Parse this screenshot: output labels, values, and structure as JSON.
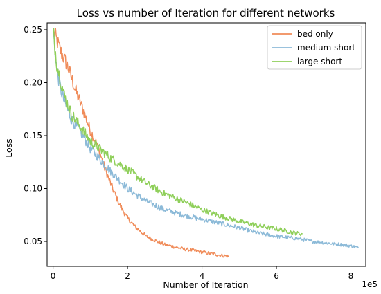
{
  "chart_data": {
    "type": "line",
    "title": "Loss vs number of Iteration for different networks",
    "xlabel": "Number of Iteration",
    "ylabel": "Loss",
    "x_offset_label": "1e5",
    "xlim": [
      -0.16,
      8.4
    ],
    "ylim": [
      0.0265,
      0.2565
    ],
    "x_ticks": [
      0,
      2,
      4,
      6,
      8
    ],
    "x_tick_labels": [
      "0",
      "2",
      "4",
      "6",
      "8"
    ],
    "y_ticks": [
      0.05,
      0.1,
      0.15,
      0.2,
      0.25
    ],
    "y_tick_labels": [
      "0.05",
      "0.10",
      "0.15",
      "0.20",
      "0.25"
    ],
    "grid": false,
    "legend_position": "top-right",
    "series": [
      {
        "name": "bed only",
        "color": "#f08c5a",
        "x": [
          0.0,
          0.2,
          0.4,
          0.6,
          0.8,
          1.0,
          1.2,
          1.4,
          1.6,
          1.8,
          2.0,
          2.2,
          2.5,
          2.8,
          3.0,
          3.5,
          4.0,
          4.5,
          4.72
        ],
        "y": [
          0.25,
          0.23,
          0.215,
          0.193,
          0.175,
          0.155,
          0.14,
          0.118,
          0.1,
          0.084,
          0.072,
          0.064,
          0.055,
          0.05,
          0.047,
          0.043,
          0.04,
          0.037,
          0.036
        ]
      },
      {
        "name": "medium short",
        "color": "#8cbad8",
        "x": [
          0.0,
          0.1,
          0.2,
          0.3,
          0.5,
          0.8,
          1.0,
          1.5,
          2.0,
          2.5,
          3.0,
          3.5,
          4.0,
          4.5,
          5.0,
          5.5,
          6.0,
          6.5,
          7.0,
          7.5,
          8.0,
          8.2
        ],
        "y": [
          0.25,
          0.212,
          0.195,
          0.182,
          0.165,
          0.15,
          0.138,
          0.118,
          0.1,
          0.088,
          0.08,
          0.075,
          0.071,
          0.067,
          0.063,
          0.058,
          0.055,
          0.053,
          0.05,
          0.048,
          0.046,
          0.044
        ]
      },
      {
        "name": "large short",
        "color": "#8fcf5a",
        "x": [
          0.0,
          0.1,
          0.3,
          0.5,
          0.8,
          1.0,
          1.5,
          2.0,
          2.5,
          3.0,
          3.5,
          4.0,
          4.5,
          5.0,
          5.5,
          6.0,
          6.5,
          6.7
        ],
        "y": [
          0.25,
          0.218,
          0.188,
          0.17,
          0.155,
          0.145,
          0.13,
          0.118,
          0.105,
          0.095,
          0.088,
          0.08,
          0.074,
          0.069,
          0.065,
          0.062,
          0.058,
          0.057
        ]
      }
    ]
  }
}
